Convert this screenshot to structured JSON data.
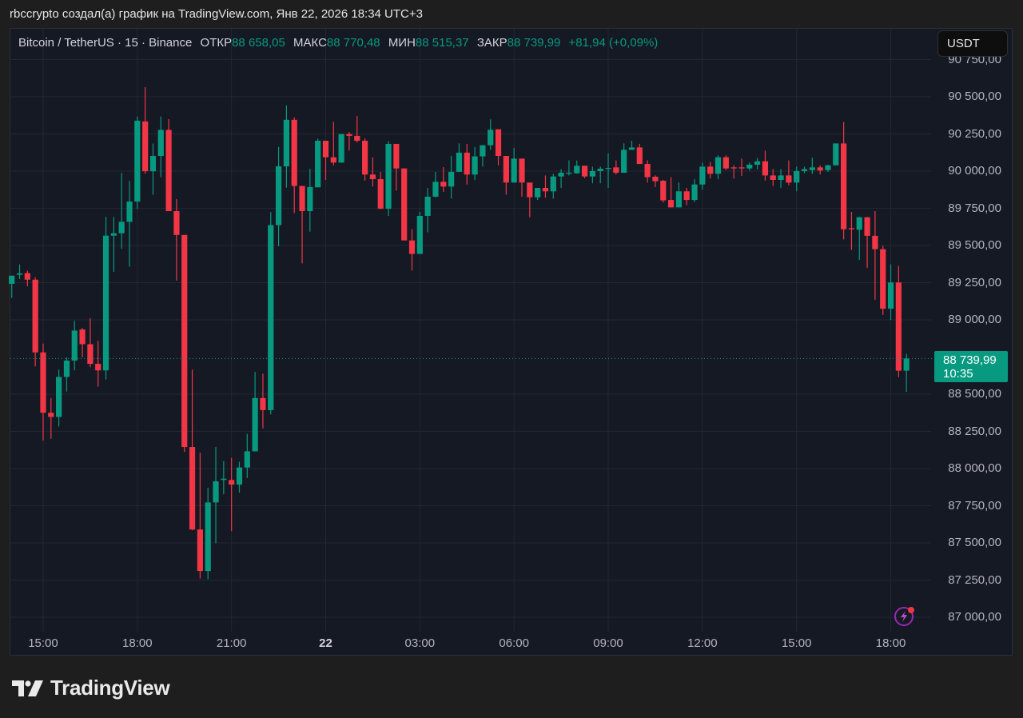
{
  "caption": "rbccrypto создал(а) график на TradingView.com, Янв 22, 2026 18:34 UTC+3",
  "legend": {
    "symbol": "Bitcoin / TetherUS · 15 · Binance",
    "open_label": "ОТКР",
    "open": "88 658,05",
    "high_label": "МАКС",
    "high": "88 770,48",
    "low_label": "МИН",
    "low": "88 515,37",
    "close_label": "ЗАКР",
    "close": "88 739,99",
    "change": "+81,94 (+0,09%)"
  },
  "currency_button": "USDT",
  "last_price": {
    "value": "88 739,99",
    "countdown": "10:35"
  },
  "logo_text": "TradingView",
  "icons": {
    "logo": "tradingview-logo-icon",
    "alert": "lightning-alert-icon"
  },
  "colors": {
    "up": "#089981",
    "down": "#f23645",
    "background": "#151924",
    "grid": "#242733"
  },
  "chart_data": {
    "type": "candlestick",
    "title": "Bitcoin / TetherUS · 15 · Binance",
    "interval": "15",
    "ylim": [
      86900,
      90850
    ],
    "grid": true,
    "y_ticks": [
      {
        "value": 90750,
        "label": "90 750,00"
      },
      {
        "value": 90500,
        "label": "90 500,00"
      },
      {
        "value": 90250,
        "label": "90 250,00"
      },
      {
        "value": 90000,
        "label": "90 000,00"
      },
      {
        "value": 89750,
        "label": "89 750,00"
      },
      {
        "value": 89500,
        "label": "89 500,00"
      },
      {
        "value": 89250,
        "label": "89 250,00"
      },
      {
        "value": 89000,
        "label": "89 000,00"
      },
      {
        "value": 88500,
        "label": "88 500,00"
      },
      {
        "value": 88250,
        "label": "88 250,00"
      },
      {
        "value": 88000,
        "label": "88 000,00"
      },
      {
        "value": 87750,
        "label": "87 750,00"
      },
      {
        "value": 87500,
        "label": "87 500,00"
      },
      {
        "value": 87250,
        "label": "87 250,00"
      },
      {
        "value": 87000,
        "label": "87 000,00"
      }
    ],
    "x_ticks": [
      {
        "candle": "15:00",
        "label": "15:00"
      },
      {
        "candle": "18:00",
        "label": "18:00"
      },
      {
        "candle": "21:00",
        "label": "21:00"
      },
      {
        "candle": "00:00",
        "label": "22",
        "bold": true
      },
      {
        "candle": "03:00",
        "label": "03:00"
      },
      {
        "candle": "06:00",
        "label": "06:00"
      },
      {
        "candle": "09:00",
        "label": "09:00"
      },
      {
        "candle": "12:00",
        "label": "12:00"
      },
      {
        "candle": "15:00b",
        "label": "15:00"
      },
      {
        "candle": "18:00b",
        "label": "18:00"
      }
    ],
    "last_value": 88739.99,
    "columns": [
      "time",
      "open",
      "high",
      "low",
      "close"
    ],
    "candles": [
      [
        "14:00",
        89242,
        89297,
        89147,
        89297
      ],
      [
        "14:15",
        89303,
        89373,
        89275,
        89312
      ],
      [
        "14:30",
        89314,
        89330,
        89226,
        89270
      ],
      [
        "14:45",
        89270,
        89286,
        88687,
        88781
      ],
      [
        "15:00",
        88781,
        88840,
        88189,
        88375
      ],
      [
        "15:15",
        88375,
        88474,
        88200,
        88347
      ],
      [
        "15:30",
        88347,
        88665,
        88283,
        88616
      ],
      [
        "15:45",
        88616,
        88748,
        88518,
        88726
      ],
      [
        "16:00",
        88726,
        88994,
        88660,
        88928
      ],
      [
        "16:15",
        88935,
        88946,
        88748,
        88836
      ],
      [
        "16:30",
        88836,
        89011,
        88682,
        88704
      ],
      [
        "16:45",
        88704,
        88858,
        88551,
        88660
      ],
      [
        "17:00",
        88660,
        89692,
        88599,
        89566
      ],
      [
        "17:15",
        89566,
        89692,
        89323,
        89582
      ],
      [
        "17:30",
        89582,
        89988,
        89477,
        89659
      ],
      [
        "17:45",
        89659,
        89933,
        89358,
        89795
      ],
      [
        "18:00",
        89795,
        90367,
        89746,
        90339
      ],
      [
        "18:15",
        90334,
        90565,
        89983,
        89999
      ],
      [
        "18:30",
        89999,
        90185,
        89841,
        90102
      ],
      [
        "18:45",
        90102,
        90367,
        89959,
        90277
      ],
      [
        "19:00",
        90277,
        90350,
        89731,
        89731
      ],
      [
        "19:15",
        89731,
        89812,
        89264,
        89571
      ],
      [
        "19:30",
        89571,
        89571,
        88112,
        88145
      ],
      [
        "19:45",
        88145,
        88665,
        87585,
        87590
      ],
      [
        "20:00",
        87590,
        88107,
        87261,
        87311
      ],
      [
        "20:15",
        87311,
        87871,
        87256,
        87772
      ],
      [
        "20:30",
        87772,
        88145,
        87498,
        87914
      ],
      [
        "20:45",
        87923,
        88050,
        87827,
        87932
      ],
      [
        "21:00",
        87923,
        88072,
        87579,
        87892
      ],
      [
        "21:15",
        87892,
        88046,
        87838,
        88007
      ],
      [
        "21:30",
        88007,
        88233,
        87936,
        88116
      ],
      [
        "21:45",
        88116,
        88649,
        88116,
        88474
      ],
      [
        "22:00",
        88474,
        88638,
        88270,
        88393
      ],
      [
        "22:15",
        88393,
        89724,
        88364,
        89637
      ],
      [
        "22:30",
        89637,
        90163,
        89494,
        90032
      ],
      [
        "22:45",
        90032,
        90442,
        89889,
        90345
      ],
      [
        "23:00",
        90345,
        90361,
        89718,
        89900
      ],
      [
        "23:15",
        89900,
        89900,
        89380,
        89731
      ],
      [
        "23:30",
        89731,
        90016,
        89593,
        89893
      ],
      [
        "23:45",
        89891,
        90219,
        89891,
        90204
      ],
      [
        "00:00",
        90204,
        90204,
        89941,
        90093
      ],
      [
        "00:15",
        90093,
        90330,
        90039,
        90057
      ],
      [
        "00:30",
        90057,
        90249,
        90057,
        90249
      ],
      [
        "00:45",
        90249,
        90263,
        90138,
        90237
      ],
      [
        "01:00",
        90237,
        90371,
        90192,
        90204
      ],
      [
        "01:15",
        90204,
        90219,
        89936,
        89977
      ],
      [
        "01:30",
        89977,
        90093,
        89896,
        89946
      ],
      [
        "01:45",
        89946,
        89995,
        89744,
        89747
      ],
      [
        "02:00",
        89747,
        90201,
        89699,
        90183
      ],
      [
        "02:15",
        90183,
        90183,
        89869,
        90018
      ],
      [
        "02:30",
        90018,
        90018,
        89534,
        89534
      ],
      [
        "02:45",
        89534,
        89609,
        89332,
        89443
      ],
      [
        "03:00",
        89443,
        89726,
        89443,
        89699
      ],
      [
        "03:15",
        89699,
        89887,
        89588,
        89828
      ],
      [
        "03:30",
        89828,
        89995,
        89824,
        89928
      ],
      [
        "03:45",
        89928,
        90027,
        89860,
        89896
      ],
      [
        "04:00",
        89896,
        90102,
        89815,
        89995
      ],
      [
        "04:15",
        89995,
        90186,
        89995,
        90124
      ],
      [
        "04:30",
        90124,
        90183,
        89910,
        89977
      ],
      [
        "04:45",
        89977,
        90161,
        89941,
        90099
      ],
      [
        "05:00",
        90099,
        90174,
        90030,
        90174
      ],
      [
        "05:15",
        90174,
        90348,
        90143,
        90278
      ],
      [
        "05:30",
        90281,
        90281,
        90039,
        90102
      ],
      [
        "05:45",
        90102,
        90102,
        89842,
        89923
      ],
      [
        "06:00",
        89923,
        90156,
        89923,
        90084
      ],
      [
        "06:15",
        90084,
        90084,
        89828,
        89923
      ],
      [
        "06:30",
        89923,
        89923,
        89690,
        89824
      ],
      [
        "06:45",
        89824,
        89887,
        89806,
        89887
      ],
      [
        "07:00",
        89887,
        89971,
        89821,
        89864
      ],
      [
        "07:15",
        89864,
        89982,
        89815,
        89964
      ],
      [
        "07:30",
        89964,
        90013,
        89887,
        89989
      ],
      [
        "07:45",
        89982,
        90072,
        89971,
        89989
      ],
      [
        "08:00",
        89985,
        90072,
        89982,
        90036
      ],
      [
        "08:15",
        90036,
        90036,
        89953,
        89964
      ],
      [
        "08:30",
        89964,
        90030,
        89918,
        90000
      ],
      [
        "08:45",
        90000,
        90030,
        89918,
        90016
      ],
      [
        "09:00",
        90014,
        90120,
        89887,
        90021
      ],
      [
        "09:15",
        90025,
        90072,
        89977,
        89989
      ],
      [
        "09:30",
        89989,
        90186,
        89989,
        90143
      ],
      [
        "09:45",
        90143,
        90204,
        90143,
        90159
      ],
      [
        "10:00",
        90159,
        90183,
        90048,
        90048
      ],
      [
        "10:15",
        90048,
        90072,
        89923,
        89959
      ],
      [
        "10:30",
        89962,
        89971,
        89893,
        89932
      ],
      [
        "10:45",
        89935,
        89941,
        89789,
        89803
      ],
      [
        "11:00",
        89806,
        89959,
        89756,
        89756
      ],
      [
        "11:15",
        89756,
        89923,
        89756,
        89864
      ],
      [
        "11:30",
        89864,
        89887,
        89771,
        89806
      ],
      [
        "11:45",
        89806,
        89946,
        89792,
        89910
      ],
      [
        "12:00",
        89910,
        90057,
        89875,
        90030
      ],
      [
        "12:15",
        90030,
        90061,
        89950,
        89982
      ],
      [
        "12:30",
        89982,
        90106,
        89946,
        90093
      ],
      [
        "12:45",
        90093,
        90106,
        90007,
        90018
      ],
      [
        "13:00",
        90025,
        90039,
        89950,
        90018
      ],
      [
        "13:15",
        90025,
        90084,
        89968,
        90018
      ],
      [
        "13:30",
        90018,
        90057,
        90004,
        90043
      ],
      [
        "13:45",
        90043,
        90088,
        90013,
        90066
      ],
      [
        "14:00",
        90066,
        90138,
        89936,
        89971
      ],
      [
        "14:15",
        89971,
        90013,
        89900,
        89941
      ],
      [
        "14:30",
        89941,
        90013,
        89887,
        89971
      ],
      [
        "14:45",
        89971,
        90072,
        89905,
        89923
      ],
      [
        "15:00",
        89923,
        90030,
        89864,
        90000
      ],
      [
        "15:15",
        90000,
        90030,
        89986,
        90013
      ],
      [
        "15:30",
        90007,
        90090,
        89982,
        90025
      ],
      [
        "15:45",
        90025,
        90039,
        89977,
        90004
      ],
      [
        "16:00",
        90007,
        90043,
        89995,
        90039
      ],
      [
        "16:15",
        90039,
        90186,
        90039,
        90186
      ],
      [
        "16:30",
        90186,
        90330,
        89541,
        89609
      ],
      [
        "16:45",
        89616,
        89726,
        89470,
        89609
      ],
      [
        "17:00",
        89606,
        89690,
        89403,
        89690
      ],
      [
        "17:15",
        89690,
        89690,
        89350,
        89565
      ],
      [
        "17:30",
        89565,
        89731,
        89135,
        89475
      ],
      [
        "17:45",
        89475,
        89498,
        89033,
        89075
      ],
      [
        "18:00",
        89075,
        89373,
        89000,
        89251
      ],
      [
        "18:15",
        89251,
        89362,
        88615,
        88658
      ],
      [
        "18:30",
        88658.05,
        88770.48,
        88515.37,
        88739.99
      ]
    ]
  }
}
